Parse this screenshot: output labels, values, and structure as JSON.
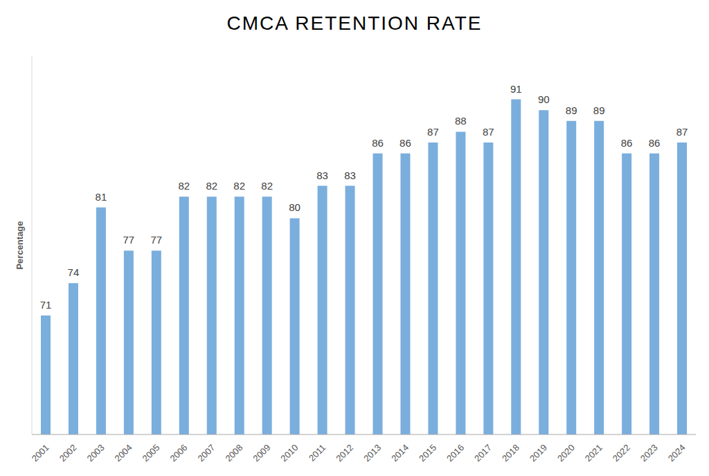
{
  "chart_data": {
    "type": "bar",
    "title": "CMCA RETENTION RATE",
    "y_label": "Percentage",
    "categories": [
      "2001",
      "2002",
      "2003",
      "2004",
      "2005",
      "2006",
      "2007",
      "2008",
      "2009",
      "2010",
      "2011",
      "2012",
      "2013",
      "2014",
      "2015",
      "2016",
      "2017",
      "2018",
      "2019",
      "2020",
      "2021",
      "2022",
      "2023",
      "2024"
    ],
    "values": [
      71,
      74,
      81,
      77,
      77,
      82,
      82,
      82,
      82,
      80,
      83,
      83,
      86,
      86,
      87,
      88,
      87,
      91,
      90,
      89,
      89,
      86,
      86,
      87
    ],
    "color": "#7aaedd",
    "ylim": [
      60,
      95
    ],
    "grid": false,
    "data_labels": true,
    "tick_labels": "x"
  }
}
